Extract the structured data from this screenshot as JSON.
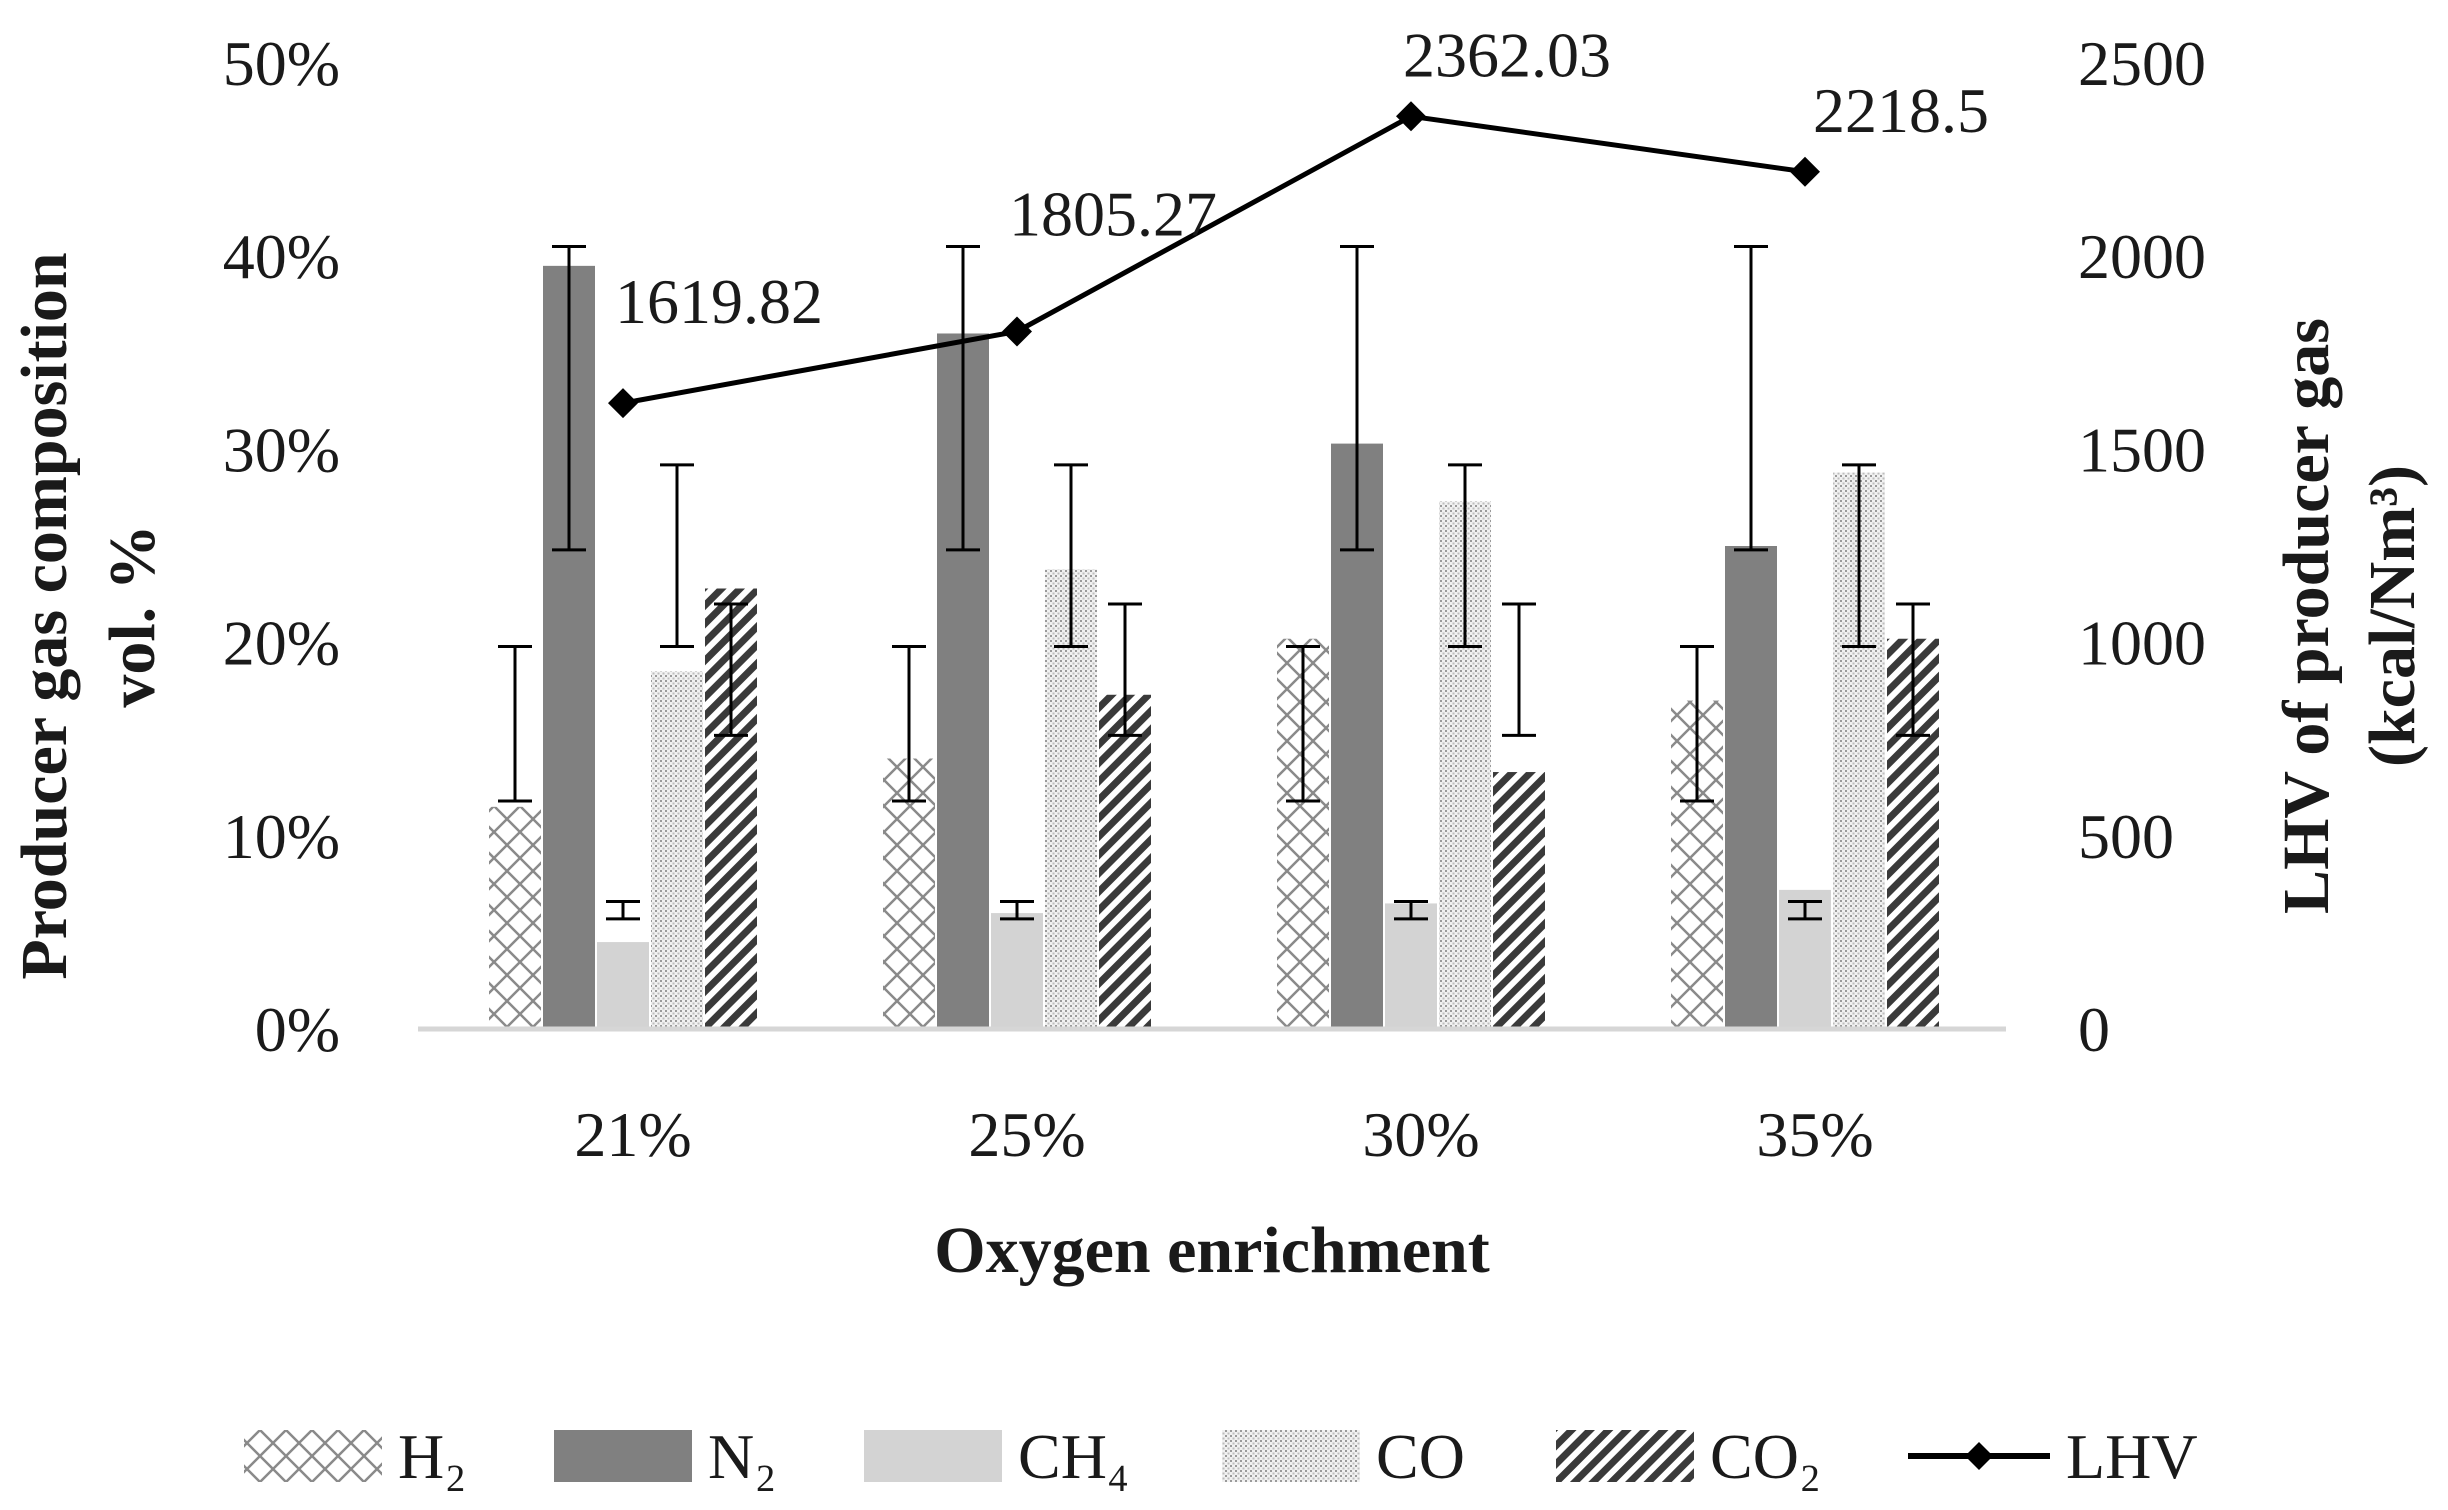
{
  "chart_data": {
    "type": "bar",
    "title": "",
    "xlabel": "Oxygen enrichment",
    "ylabel": {
      "line1": "Producer gas composition",
      "line2": "vol. %"
    },
    "y2label": {
      "line1": "LHV of producer gas",
      "line2": "(kcal/Nm³)"
    },
    "categories": [
      "21%",
      "25%",
      "30%",
      "35%"
    ],
    "ylim": [
      0,
      50
    ],
    "y2lim": [
      0,
      2500
    ],
    "yticks": [
      "0%",
      "10%",
      "20%",
      "30%",
      "40%",
      "50%"
    ],
    "y2ticks": [
      "0",
      "500",
      "1000",
      "1500",
      "2000",
      "2500"
    ],
    "series": [
      {
        "name": "H₂",
        "key": "h2",
        "pattern": "crosshatch",
        "values": [
          11.5,
          14,
          20.2,
          17
        ],
        "error_low": [
          11.8,
          11.8,
          11.8,
          11.8
        ],
        "error_high": [
          19.8,
          19.8,
          19.8,
          19.8
        ]
      },
      {
        "name": "N₂",
        "key": "n2",
        "pattern": "solid-dark",
        "values": [
          39.5,
          36,
          30.3,
          25
        ],
        "error_low": [
          24.8,
          24.8,
          24.8,
          24.8
        ],
        "error_high": [
          40.5,
          40.5,
          40.5,
          40.5
        ]
      },
      {
        "name": "CH₄",
        "key": "ch4",
        "pattern": "solid-light",
        "values": [
          4.5,
          6,
          6.5,
          7.2
        ],
        "error_low": [
          5.7,
          5.7,
          5.7,
          5.7
        ],
        "error_high": [
          6.6,
          6.6,
          6.6,
          6.6
        ]
      },
      {
        "name": "CO",
        "key": "co",
        "pattern": "dots",
        "values": [
          18.5,
          23.8,
          27.3,
          28.8
        ],
        "error_low": [
          19.8,
          19.8,
          19.8,
          19.8
        ],
        "error_high": [
          29.2,
          29.2,
          29.2,
          29.2
        ]
      },
      {
        "name": "CO₂",
        "key": "co2",
        "pattern": "diagonal",
        "values": [
          22.8,
          17.3,
          13.3,
          20.2
        ],
        "error_low": [
          15.2,
          15.2,
          15.2,
          15.2
        ],
        "error_high": [
          22,
          22,
          22,
          22
        ]
      }
    ],
    "line": {
      "name": "LHV",
      "axis": "right",
      "values": [
        1619.82,
        1805.27,
        2362.03,
        2218.5
      ],
      "labels": [
        "1619.82",
        "1805.27",
        "2362.03",
        "2218.5"
      ]
    }
  }
}
